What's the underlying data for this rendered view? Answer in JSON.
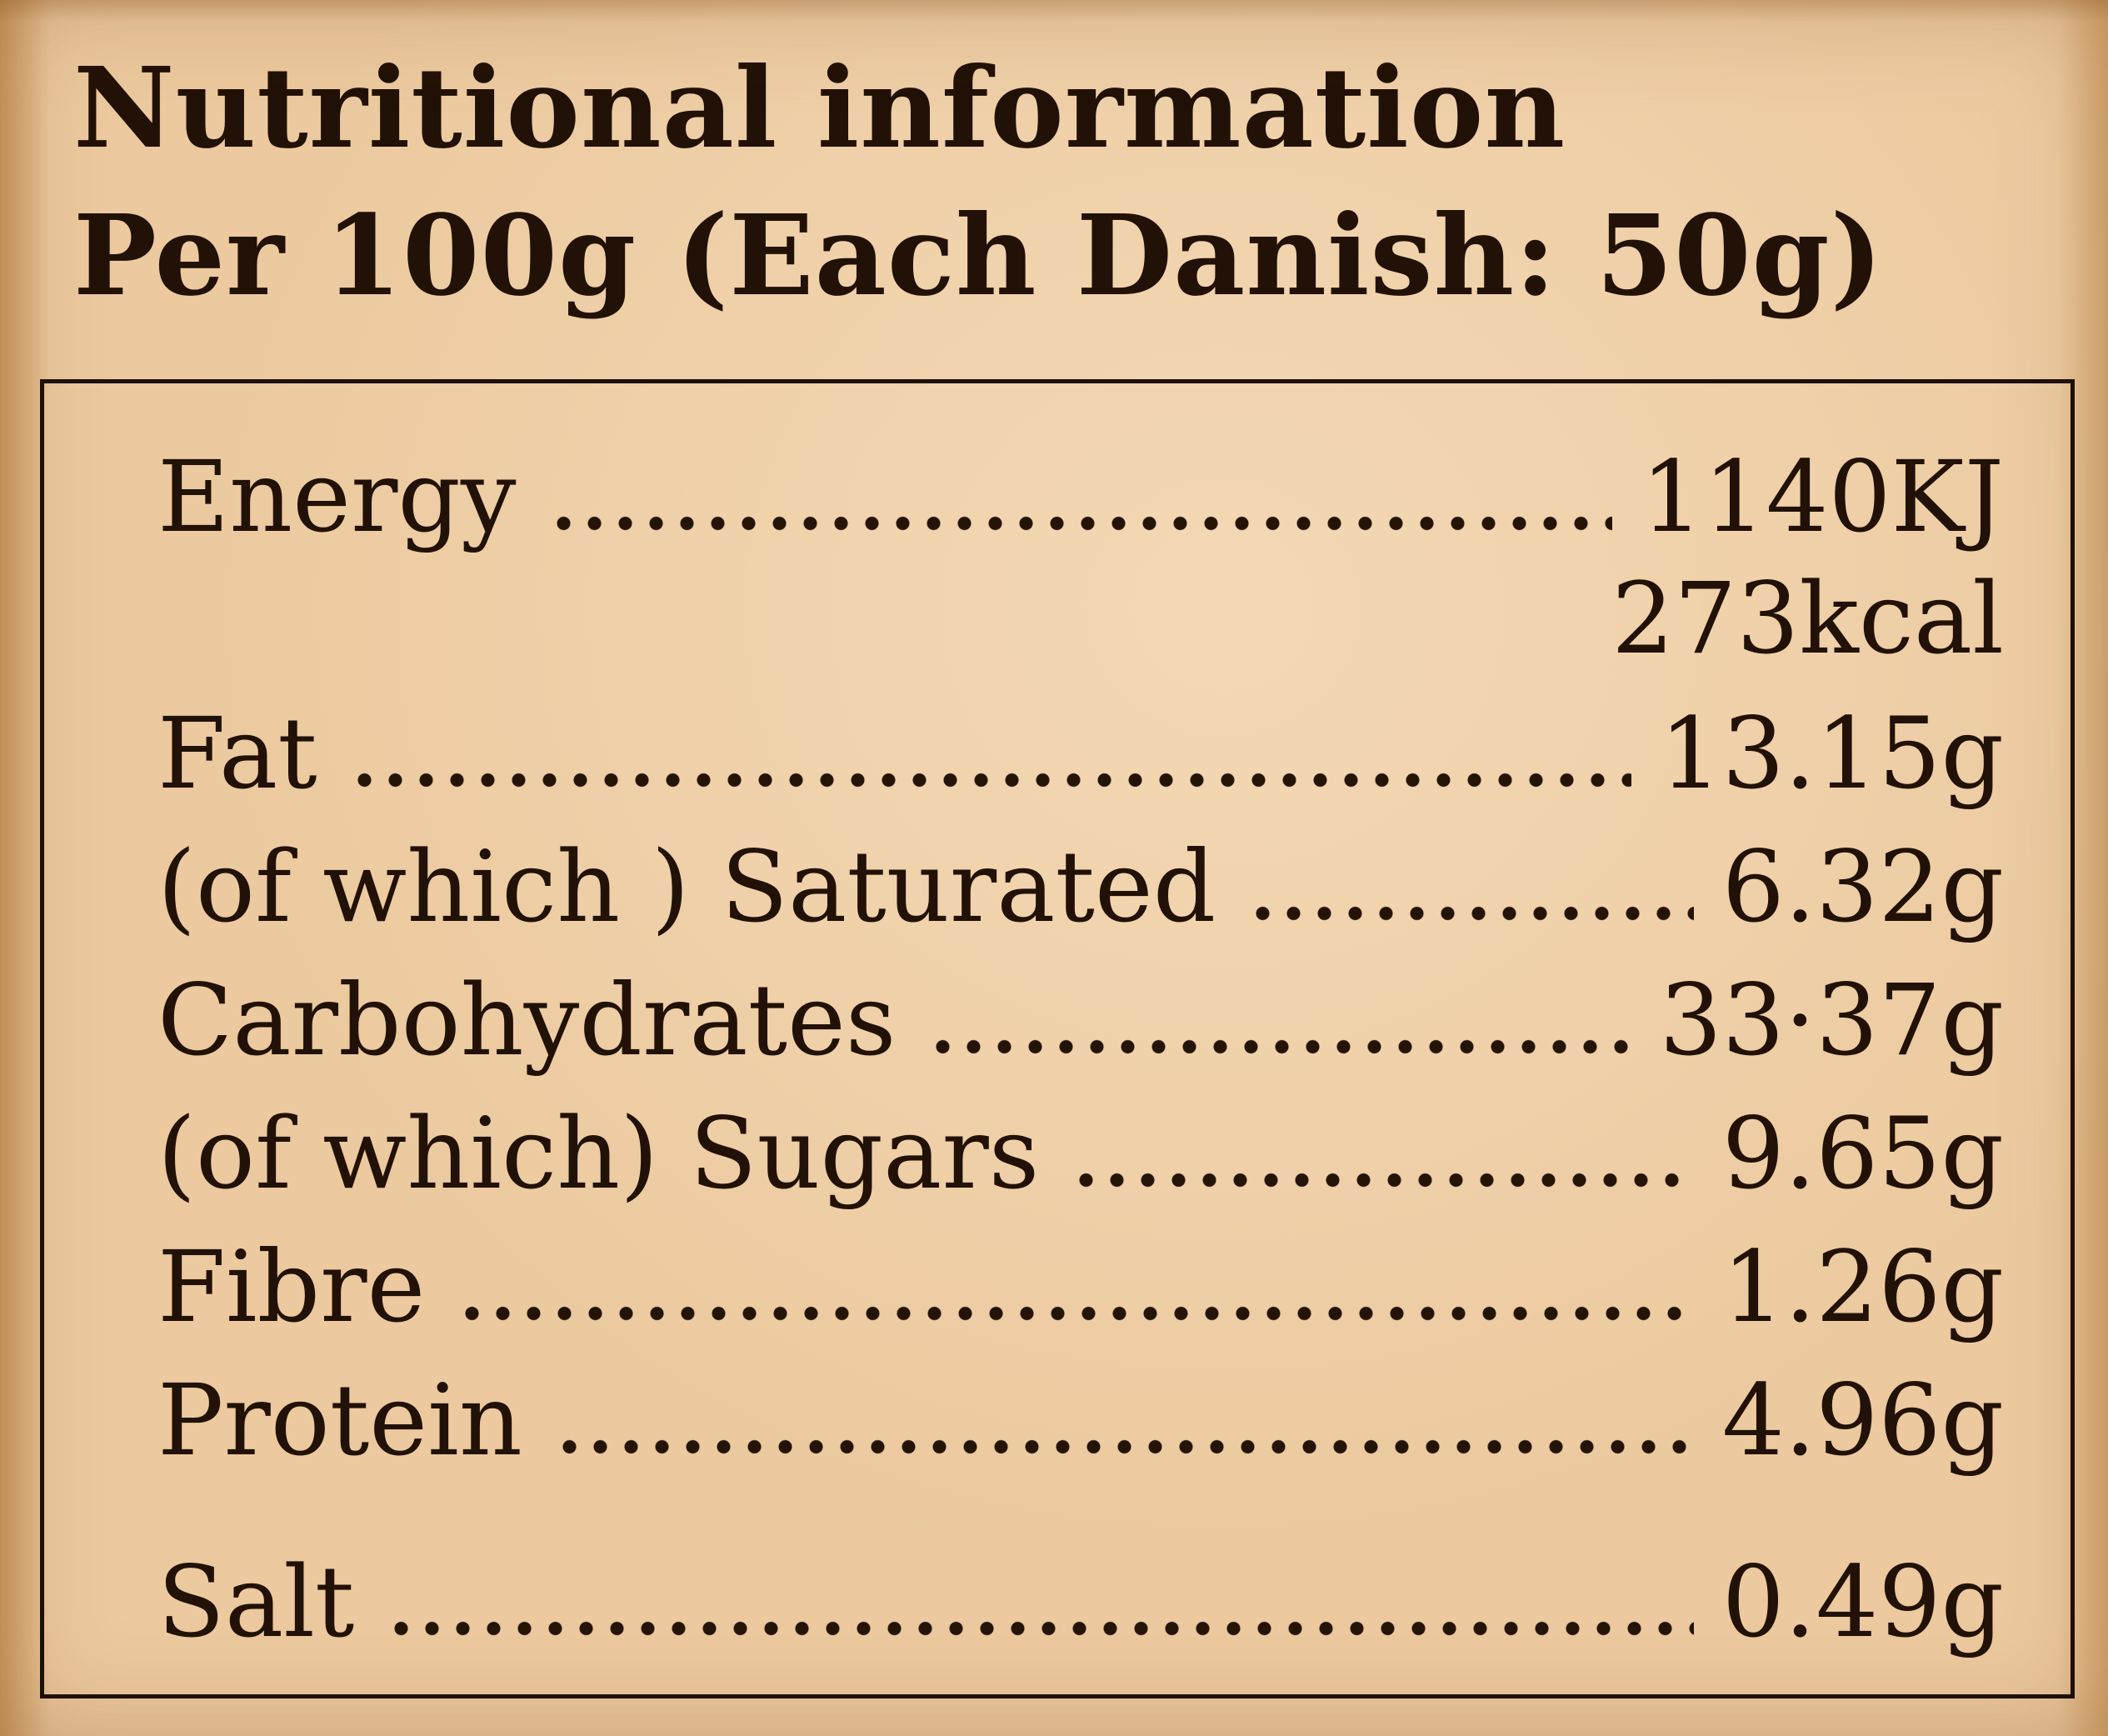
{
  "label": {
    "title": "Nutritional information",
    "subtitle": "Per 100g (Each Danish: 50g)",
    "rows": [
      {
        "name": "Energy",
        "value": "1140KJ"
      },
      {
        "name": "",
        "value": "273kcal"
      },
      {
        "name": "Fat",
        "value": "13.15g"
      },
      {
        "name": "(of which ) Saturated",
        "value": "6.32g"
      },
      {
        "name": "Carbohydrates",
        "value": "33·37g"
      },
      {
        "name": "(of which) Sugars",
        "value": "9.65g"
      },
      {
        "name": "Fibre",
        "value": "1.26g"
      },
      {
        "name": "Protein",
        "value": "4.96g"
      },
      {
        "name": "Salt",
        "value": "0.49g"
      }
    ]
  },
  "colors": {
    "background": "#ecc99e",
    "text": "#211106",
    "border": "#1d0f04"
  }
}
